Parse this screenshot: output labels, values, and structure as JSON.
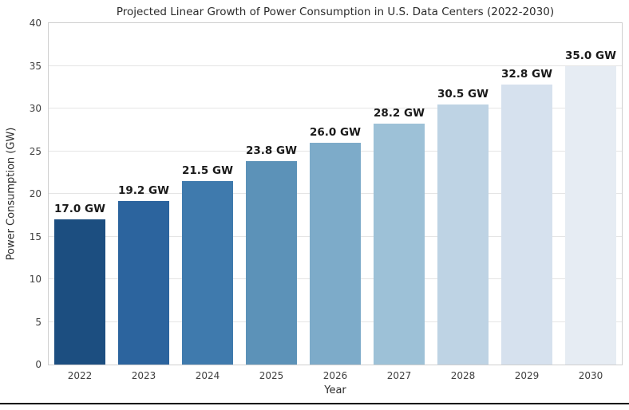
{
  "page": {
    "background_color": "#ffffff",
    "bottom_border_color": "#000000"
  },
  "chart_data": {
    "type": "bar",
    "title": "Projected Linear Growth of Power Consumption in U.S. Data Centers (2022-2030)",
    "xlabel": "Year",
    "ylabel": "Power Consumption (GW)",
    "categories": [
      "2022",
      "2023",
      "2024",
      "2025",
      "2026",
      "2027",
      "2028",
      "2029",
      "2030"
    ],
    "values": [
      17.0,
      19.2,
      21.5,
      23.8,
      26.0,
      28.2,
      30.5,
      32.8,
      35.0
    ],
    "bar_labels": [
      "17.0 GW",
      "19.2 GW",
      "21.5 GW",
      "23.8 GW",
      "26.0 GW",
      "28.2 GW",
      "30.5 GW",
      "32.8 GW",
      "35.0 GW"
    ],
    "bar_colors": [
      "#1c4e80",
      "#2c649e",
      "#3f7aad",
      "#5c92b8",
      "#7dabc9",
      "#9dc1d7",
      "#bed3e4",
      "#d6e1ee",
      "#e6ecf3"
    ],
    "ylim": [
      0,
      40
    ],
    "yticks": [
      0,
      5,
      10,
      15,
      20,
      25,
      30,
      35,
      40
    ],
    "grid": true,
    "grid_color": "#e5e5e5",
    "spine_color": "#cfcfcf",
    "legend_position": "none"
  }
}
